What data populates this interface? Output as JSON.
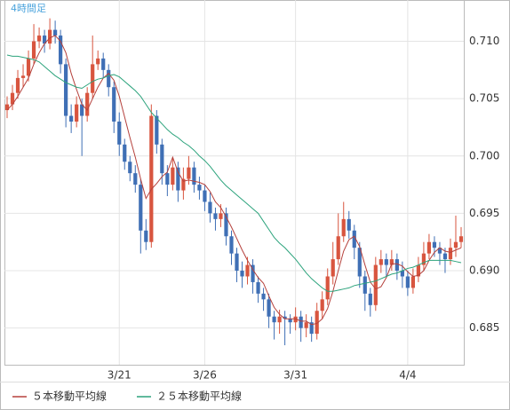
{
  "chart_data": {
    "type": "candlestick",
    "title": "4時間足",
    "categories": [
      null,
      null,
      null,
      null,
      null,
      null,
      null,
      null,
      null,
      null,
      null,
      null,
      null,
      null,
      null,
      null,
      null,
      null,
      null,
      null,
      null,
      "3/21",
      null,
      null,
      null,
      null,
      null,
      null,
      null,
      null,
      null,
      null,
      null,
      null,
      null,
      null,
      null,
      "3/26",
      null,
      null,
      null,
      null,
      null,
      null,
      null,
      null,
      null,
      null,
      null,
      null,
      null,
      null,
      null,
      null,
      "3/31",
      null,
      null,
      null,
      null,
      null,
      null,
      null,
      null,
      null,
      null,
      null,
      null,
      null,
      null,
      null,
      null,
      null,
      null,
      null,
      null,
      "4/4",
      null,
      null,
      null,
      null,
      null,
      null,
      null,
      null,
      null,
      null
    ],
    "open": [
      0.704,
      0.7045,
      0.7055,
      0.7068,
      0.707,
      0.7085,
      0.71,
      0.7105,
      0.7098,
      0.711,
      0.7105,
      0.708,
      0.7035,
      0.703,
      0.7045,
      0.7035,
      0.7055,
      0.708,
      0.7085,
      0.7075,
      0.706,
      0.703,
      0.701,
      0.6995,
      0.6985,
      0.6975,
      0.6935,
      0.6925,
      0.7035,
      0.701,
      0.6985,
      0.6975,
      0.699,
      0.697,
      0.698,
      0.699,
      0.6975,
      0.697,
      0.696,
      0.695,
      0.6945,
      0.695,
      0.693,
      0.6915,
      0.69,
      0.6895,
      0.6905,
      0.689,
      0.688,
      0.6875,
      0.686,
      0.6855,
      0.686,
      0.6858,
      0.6855,
      0.686,
      0.685,
      0.6855,
      0.6845,
      0.6865,
      0.6875,
      0.6895,
      0.691,
      0.693,
      0.6945,
      0.6935,
      0.692,
      0.6895,
      0.688,
      0.687,
      0.6905,
      0.691,
      0.6905,
      0.691,
      0.69,
      0.6895,
      0.6885,
      0.6895,
      0.6905,
      0.6915,
      0.6925,
      0.692,
      0.6915,
      0.691,
      0.692,
      0.6925
    ],
    "high": [
      0.7052,
      0.7062,
      0.7075,
      0.708,
      0.7092,
      0.7115,
      0.7112,
      0.711,
      0.712,
      0.7118,
      0.711,
      0.7085,
      0.7045,
      0.7052,
      0.705,
      0.706,
      0.7105,
      0.7092,
      0.709,
      0.708,
      0.7065,
      0.7038,
      0.7015,
      0.7,
      0.6992,
      0.698,
      0.6945,
      0.7045,
      0.704,
      0.7015,
      0.6992,
      0.6998,
      0.6995,
      0.699,
      0.7,
      0.6995,
      0.6982,
      0.6975,
      0.6968,
      0.6955,
      0.6958,
      0.6955,
      0.6935,
      0.692,
      0.6908,
      0.6912,
      0.691,
      0.6895,
      0.6885,
      0.688,
      0.6865,
      0.6866,
      0.6865,
      0.6862,
      0.6868,
      0.6865,
      0.6862,
      0.686,
      0.6872,
      0.6882,
      0.6902,
      0.6925,
      0.695,
      0.696,
      0.6952,
      0.694,
      0.6925,
      0.69,
      0.6885,
      0.6912,
      0.6918,
      0.6915,
      0.6918,
      0.6915,
      0.6908,
      0.69,
      0.6902,
      0.6912,
      0.6925,
      0.6932,
      0.693,
      0.6925,
      0.692,
      0.6928,
      0.6948,
      0.6938
    ],
    "low": [
      0.7033,
      0.704,
      0.705,
      0.706,
      0.7065,
      0.708,
      0.7094,
      0.709,
      0.7093,
      0.7098,
      0.7072,
      0.7025,
      0.702,
      0.7025,
      0.7,
      0.703,
      0.705,
      0.7075,
      0.7068,
      0.7052,
      0.702,
      0.7,
      0.6988,
      0.6978,
      0.6968,
      0.6915,
      0.6918,
      0.692,
      0.7002,
      0.6975,
      0.6965,
      0.697,
      0.696,
      0.6962,
      0.6975,
      0.6968,
      0.6962,
      0.6952,
      0.6942,
      0.6935,
      0.6938,
      0.6922,
      0.6905,
      0.689,
      0.6885,
      0.6888,
      0.688,
      0.6872,
      0.6865,
      0.685,
      0.684,
      0.6845,
      0.6835,
      0.6845,
      0.6848,
      0.6838,
      0.6842,
      0.6838,
      0.684,
      0.6858,
      0.687,
      0.6888,
      0.6905,
      0.6925,
      0.6928,
      0.691,
      0.6885,
      0.6865,
      0.686,
      0.6865,
      0.6898,
      0.6895,
      0.69,
      0.6892,
      0.6885,
      0.6878,
      0.688,
      0.689,
      0.69,
      0.691,
      0.6912,
      0.6905,
      0.6898,
      0.6905,
      0.6912,
      0.692
    ],
    "close": [
      0.7045,
      0.7055,
      0.7068,
      0.707,
      0.7085,
      0.71,
      0.7105,
      0.7098,
      0.711,
      0.7105,
      0.708,
      0.7035,
      0.703,
      0.7045,
      0.7035,
      0.7055,
      0.708,
      0.7085,
      0.7075,
      0.706,
      0.703,
      0.701,
      0.6995,
      0.6985,
      0.6975,
      0.6935,
      0.6925,
      0.7035,
      0.701,
      0.6985,
      0.6975,
      0.699,
      0.697,
      0.698,
      0.699,
      0.6975,
      0.697,
      0.696,
      0.695,
      0.6945,
      0.695,
      0.693,
      0.6915,
      0.69,
      0.6895,
      0.6905,
      0.689,
      0.688,
      0.6875,
      0.686,
      0.6855,
      0.686,
      0.6858,
      0.6855,
      0.686,
      0.685,
      0.6855,
      0.6845,
      0.6865,
      0.6875,
      0.6895,
      0.691,
      0.693,
      0.6945,
      0.6935,
      0.692,
      0.6895,
      0.688,
      0.687,
      0.6905,
      0.691,
      0.6905,
      0.691,
      0.69,
      0.6895,
      0.6885,
      0.6895,
      0.6905,
      0.6915,
      0.6925,
      0.692,
      0.6915,
      0.691,
      0.692,
      0.6925,
      0.693
    ],
    "up_color": "#d8553f",
    "down_color": "#3f6fb5",
    "series": [
      {
        "name": "５本移動平均線",
        "color": "#b5413c",
        "values": [
          0.704,
          0.7045,
          0.7052,
          0.706,
          0.7068,
          0.708,
          0.709,
          0.7098,
          0.7103,
          0.7105,
          0.71,
          0.709,
          0.7072,
          0.7058,
          0.7045,
          0.704,
          0.705,
          0.706,
          0.7068,
          0.7072,
          0.7066,
          0.7052,
          0.7034,
          0.7016,
          0.6999,
          0.698,
          0.6963,
          0.6971,
          0.6976,
          0.6982,
          0.6986,
          0.6999,
          0.6986,
          0.6978,
          0.6979,
          0.6978,
          0.6977,
          0.6975,
          0.6969,
          0.696,
          0.6955,
          0.6947,
          0.6938,
          0.6928,
          0.6918,
          0.6909,
          0.6901,
          0.6894,
          0.6889,
          0.6878,
          0.6868,
          0.6862,
          0.6858,
          0.6858,
          0.6858,
          0.6856,
          0.6856,
          0.6853,
          0.6854,
          0.6858,
          0.6867,
          0.6882,
          0.69,
          0.6917,
          0.6927,
          0.693,
          0.6921,
          0.6905,
          0.689,
          0.6884,
          0.6886,
          0.6894,
          0.6906,
          0.6906,
          0.6904,
          0.6899,
          0.6895,
          0.6896,
          0.69,
          0.6909,
          0.6916,
          0.692,
          0.6917,
          0.6916,
          0.6918,
          0.692
        ]
      },
      {
        "name": "２５本移動平均線",
        "color": "#2ca37c",
        "values": [
          0.7088,
          0.7087,
          0.7087,
          0.7086,
          0.7085,
          0.7084,
          0.7082,
          0.7078,
          0.7074,
          0.707,
          0.7067,
          0.7064,
          0.7062,
          0.706,
          0.7059,
          0.7062,
          0.7065,
          0.7067,
          0.7068,
          0.707,
          0.7071,
          0.7069,
          0.7065,
          0.7061,
          0.7057,
          0.7052,
          0.7045,
          0.7038,
          0.7033,
          0.7028,
          0.7023,
          0.7019,
          0.7016,
          0.7012,
          0.7009,
          0.7005,
          0.7,
          0.6996,
          0.6991,
          0.6985,
          0.6979,
          0.6974,
          0.697,
          0.6966,
          0.6962,
          0.6958,
          0.6954,
          0.695,
          0.6943,
          0.6936,
          0.6929,
          0.6924,
          0.692,
          0.6915,
          0.691,
          0.6904,
          0.6898,
          0.6893,
          0.6889,
          0.6885,
          0.6882,
          0.6882,
          0.6883,
          0.6884,
          0.6885,
          0.6887,
          0.6888,
          0.6889,
          0.689,
          0.6891,
          0.6893,
          0.6895,
          0.6897,
          0.6898,
          0.69,
          0.6902,
          0.6903,
          0.6905,
          0.6907,
          0.6909,
          0.6909,
          0.6909,
          0.6909,
          0.6909,
          0.6908,
          0.6907
        ]
      }
    ],
    "ylim": [
      0.6818,
      0.7136
    ],
    "yticks": [
      0.685,
      {
        "value": 0.69,
        "label": "0.690"
      },
      0.695,
      {
        "value": 0.7,
        "label": "0.700"
      },
      0.705,
      {
        "value": 0.71,
        "label": "0.710"
      }
    ],
    "grid": true
  }
}
